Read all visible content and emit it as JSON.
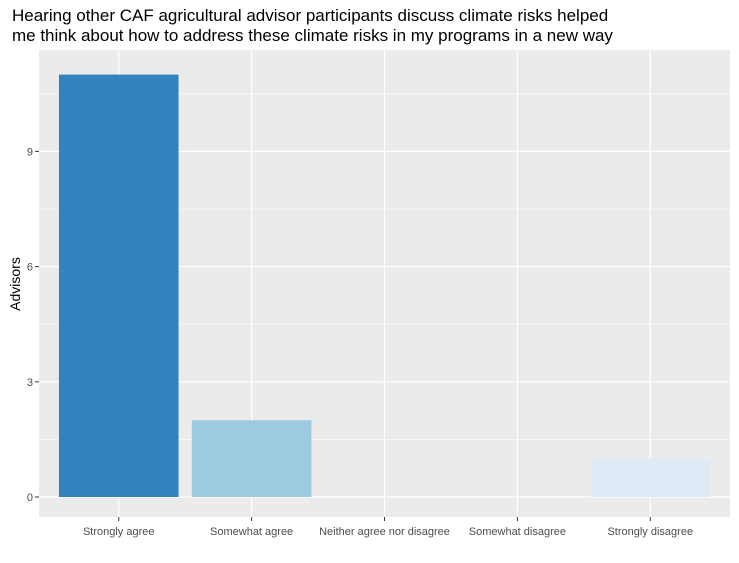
{
  "chart_data": {
    "type": "bar",
    "title_lines": [
      "Hearing other CAF agricultural advisor participants discuss climate risks helped",
      "me think about how to address these climate risks in my programs in a new way"
    ],
    "xlabel": "",
    "ylabel": "Advisors",
    "categories": [
      "Strongly agree",
      "Somewhat agree",
      "Neither agree nor disagree",
      "Somewhat disagree",
      "Strongly disagree"
    ],
    "values": [
      11,
      2,
      0,
      0,
      1
    ],
    "bar_colors": [
      "#3182bd",
      "#9ecae1",
      "#deebf7",
      "#deebf7",
      "#deebf7"
    ],
    "ylim": [
      0,
      11.55
    ],
    "yticks": [
      0,
      3,
      6,
      9
    ],
    "grid": true,
    "panel_background": "#ebebeb",
    "grid_color": "#ffffff"
  }
}
